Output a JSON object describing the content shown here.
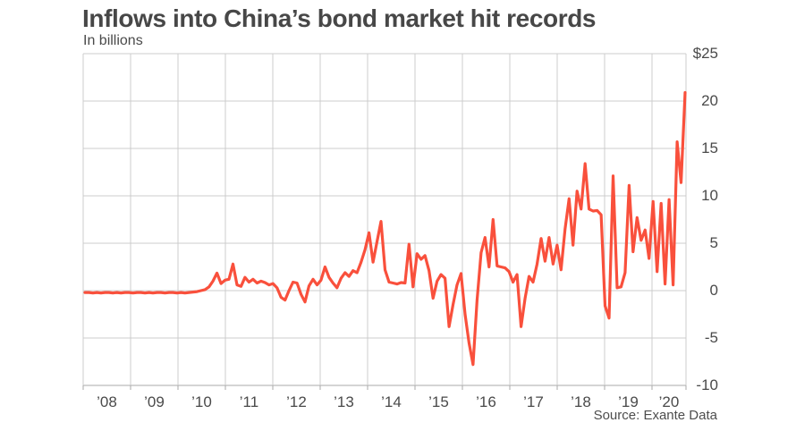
{
  "chart": {
    "title": "Inflows into China’s bond market hit records",
    "subtitle": "In billions",
    "source": "Source: Exante Data"
  },
  "chart_data": {
    "type": "line",
    "title": "Inflows into China’s bond market hit records",
    "subtitle": "In billions",
    "source": "Source: Exante Data",
    "frequency": "monthly",
    "x_start": "2008-01",
    "x_end": "2020-07",
    "x_tick_labels": [
      "’08",
      "’09",
      "’10",
      "’11",
      "’12",
      "’13",
      "’14",
      "’15",
      "’16",
      "’17",
      "’18",
      "’19",
      "’20"
    ],
    "y_tick_labels": [
      "$25",
      "20",
      "15",
      "10",
      "5",
      "0",
      "-5",
      "-10"
    ],
    "y_tick_values": [
      25,
      20,
      15,
      10,
      5,
      0,
      -5,
      -10
    ],
    "ylim": [
      -10,
      25
    ],
    "grid": true,
    "line_color": "#f9503c",
    "values": [
      -0.2,
      -0.2,
      -0.25,
      -0.2,
      -0.25,
      -0.2,
      -0.2,
      -0.25,
      -0.2,
      -0.25,
      -0.2,
      -0.2,
      -0.25,
      -0.2,
      -0.2,
      -0.25,
      -0.2,
      -0.25,
      -0.2,
      -0.2,
      -0.25,
      -0.2,
      -0.2,
      -0.25,
      -0.2,
      -0.25,
      -0.2,
      -0.15,
      -0.1,
      0.0,
      0.1,
      0.4,
      1.0,
      1.85,
      0.75,
      1.1,
      1.2,
      2.8,
      0.6,
      0.45,
      1.4,
      0.9,
      1.2,
      0.8,
      1.0,
      0.85,
      0.6,
      0.75,
      0.3,
      -0.7,
      -1.0,
      0.0,
      0.9,
      0.8,
      -0.4,
      -1.2,
      0.5,
      1.2,
      0.6,
      1.1,
      2.5,
      1.4,
      0.8,
      0.3,
      1.3,
      1.9,
      1.5,
      2.1,
      1.9,
      3.0,
      4.3,
      6.1,
      3.0,
      5.2,
      7.3,
      2.2,
      0.9,
      0.8,
      0.7,
      0.85,
      0.8,
      4.9,
      0.4,
      3.9,
      3.3,
      3.7,
      2.1,
      -0.8,
      1.0,
      1.7,
      1.3,
      -3.8,
      -1.5,
      0.6,
      1.8,
      -2.5,
      -5.5,
      -7.8,
      -1.0,
      4.0,
      5.6,
      2.5,
      7.5,
      2.6,
      2.5,
      2.4,
      2.0,
      0.9,
      1.7,
      -3.8,
      -0.8,
      1.5,
      0.9,
      2.8,
      5.5,
      3.1,
      5.6,
      2.8,
      4.8,
      2.2,
      6.5,
      9.7,
      4.8,
      10.5,
      8.6,
      13.4,
      8.6,
      8.4,
      8.45,
      8.0,
      -1.6,
      -2.9,
      12.1,
      0.3,
      0.4,
      1.9,
      11.1,
      4.1,
      7.7,
      5.3,
      6.4,
      3.4,
      9.4,
      2.0,
      9.2,
      0.7,
      9.6,
      0.6,
      15.7,
      11.4,
      20.9
    ]
  }
}
